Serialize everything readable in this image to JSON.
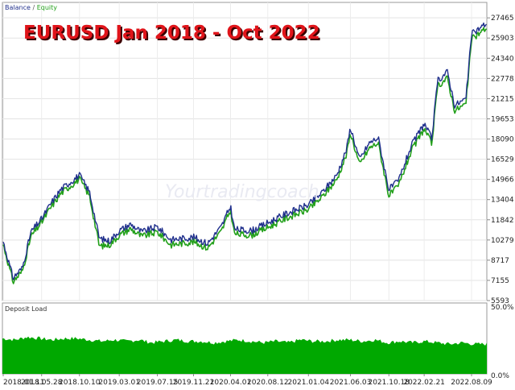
{
  "chart_data": [
    {
      "type": "line",
      "title": "EURUSD Jan 2018 - Oct 2022",
      "legend": {
        "position": "top-left",
        "items": [
          {
            "label": "Balance",
            "color": "#1f2f8c"
          },
          {
            "label": "Equity",
            "color": "#22a01a"
          }
        ],
        "separator": " / "
      },
      "ylim": [
        5593,
        28660
      ],
      "yticks": [
        27465,
        25903,
        24340,
        22778,
        21215,
        19653,
        18090,
        16529,
        14966,
        13404,
        11842,
        10279,
        8717,
        7155,
        5593
      ],
      "grid": true,
      "series": [
        {
          "name": "Balance",
          "color": "#1f2f8c",
          "x": [
            "2018-01-11",
            "2018-02-15",
            "2018-03-20",
            "2018-04-20",
            "2018-05-28",
            "2018-06-30",
            "2018-08-05",
            "2018-09-10",
            "2018-10-10",
            "2018-11-15",
            "2018-12-20",
            "2019-01-25",
            "2019-03-01",
            "2019-04-10",
            "2019-05-20",
            "2019-07-15",
            "2019-09-01",
            "2019-11-21",
            "2020-01-10",
            "2020-02-28",
            "2020-04-01",
            "2020-04-15",
            "2020-06-15",
            "2020-08-12",
            "2020-10-15",
            "2021-01-04",
            "2021-02-20",
            "2021-04-15",
            "2021-05-20",
            "2021-06-03",
            "2021-07-05",
            "2021-08-10",
            "2021-09-10",
            "2021-10-18",
            "2021-11-20",
            "2022-01-05",
            "2022-02-21",
            "2022-03-20",
            "2022-04-10",
            "2022-05-15",
            "2022-06-10",
            "2022-07-20",
            "2022-08-09",
            "2022-10-01"
          ],
          "values": [
            10150,
            7350,
            8100,
            10900,
            11900,
            13100,
            14200,
            14800,
            15300,
            14000,
            10400,
            10200,
            11000,
            11500,
            10900,
            11300,
            10300,
            10500,
            10000,
            11300,
            12900,
            11100,
            11000,
            11600,
            12300,
            13000,
            13900,
            15300,
            17300,
            19000,
            16500,
            17800,
            18200,
            14200,
            14800,
            17500,
            19300,
            18100,
            22600,
            23300,
            20700,
            21200,
            26200,
            27050
          ]
        },
        {
          "name": "Equity",
          "color": "#22a01a",
          "x": [
            "2018-01-11",
            "2018-02-15",
            "2018-03-20",
            "2018-04-20",
            "2018-05-28",
            "2018-06-30",
            "2018-08-05",
            "2018-09-10",
            "2018-10-10",
            "2018-11-15",
            "2018-12-20",
            "2019-01-25",
            "2019-03-01",
            "2019-04-10",
            "2019-05-20",
            "2019-07-15",
            "2019-09-01",
            "2019-11-21",
            "2020-01-10",
            "2020-02-28",
            "2020-04-01",
            "2020-04-15",
            "2020-06-15",
            "2020-08-12",
            "2020-10-15",
            "2021-01-04",
            "2021-02-20",
            "2021-04-15",
            "2021-05-20",
            "2021-06-03",
            "2021-07-05",
            "2021-08-10",
            "2021-09-10",
            "2021-10-18",
            "2021-11-20",
            "2022-01-05",
            "2022-02-21",
            "2022-03-20",
            "2022-04-10",
            "2022-05-15",
            "2022-06-10",
            "2022-07-20",
            "2022-08-09",
            "2022-10-01"
          ],
          "values": [
            9950,
            7050,
            7850,
            10550,
            11650,
            12800,
            13900,
            14500,
            15000,
            13700,
            9800,
            9900,
            10650,
            11150,
            10550,
            10900,
            9900,
            10150,
            9650,
            10950,
            12600,
            10750,
            10650,
            11250,
            11950,
            12650,
            13550,
            14950,
            16900,
            18600,
            16100,
            17400,
            17800,
            13700,
            14400,
            17100,
            18900,
            17700,
            22200,
            22800,
            20300,
            20800,
            25800,
            26700
          ]
        }
      ]
    },
    {
      "type": "area",
      "title": "Deposit Load",
      "ylim": [
        0,
        50
      ],
      "yticks_labels": [
        "50.0%",
        "0.0%"
      ],
      "xticks": [
        "2018.01.11",
        "2018.05.28",
        "2018.10.10",
        "2019.03.01",
        "2019.07.15",
        "2019.11.21",
        "2020.04.01",
        "2020.08.12",
        "2021.01.04",
        "2021.06.03",
        "2021.10.18",
        "2022.02.21",
        "2022.08.09"
      ],
      "color": "#00a800",
      "series": [
        {
          "name": "Deposit Load",
          "values": [
            25,
            24,
            26,
            25,
            24,
            25,
            25,
            24,
            23,
            24,
            23,
            24,
            22,
            23,
            24,
            23,
            23,
            22,
            23,
            24,
            23,
            22,
            23,
            22,
            24,
            23,
            23,
            24,
            24,
            23,
            24,
            22,
            23,
            22,
            23,
            22,
            21,
            22,
            21,
            21
          ]
        }
      ]
    }
  ],
  "watermark": "Yourtradingcoach"
}
